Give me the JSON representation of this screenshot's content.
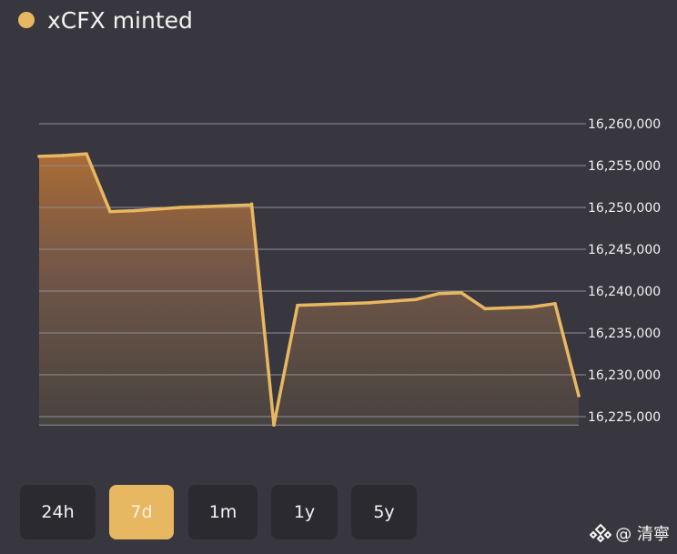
{
  "header": {
    "title": "xCFX minted",
    "legend_color": "#e8b761"
  },
  "range": {
    "buttons": [
      "24h",
      "7d",
      "1m",
      "1y",
      "5y"
    ],
    "selected": "7d"
  },
  "watermark": {
    "text": "@ 清寧",
    "icon": "binance-logo-icon"
  },
  "colors": {
    "background": "#38373f",
    "line": "#e8b761",
    "grid": "#8f8f96",
    "button": "#2b2a31"
  },
  "chart_data": {
    "type": "area",
    "title": "xCFX minted",
    "series": [
      {
        "name": "xCFX minted",
        "values": [
          16256100,
          16256200,
          16256400,
          16249500,
          16249600,
          16249800,
          16250000,
          16250100,
          16250200,
          16250300,
          16250400,
          16224000,
          16238300,
          16238400,
          16238500,
          16238600,
          16238800,
          16239000,
          16239700,
          16239800,
          16237900,
          16238000,
          16238100,
          16238500,
          16227500
        ]
      }
    ],
    "y_ticks": [
      "16,260,000",
      "16,255,000",
      "16,250,000",
      "16,245,000",
      "16,240,000",
      "16,235,000",
      "16,230,000",
      "16,225,000"
    ],
    "ylim": [
      16224000,
      16261000
    ],
    "grid": true,
    "y_axis_position": "right"
  }
}
